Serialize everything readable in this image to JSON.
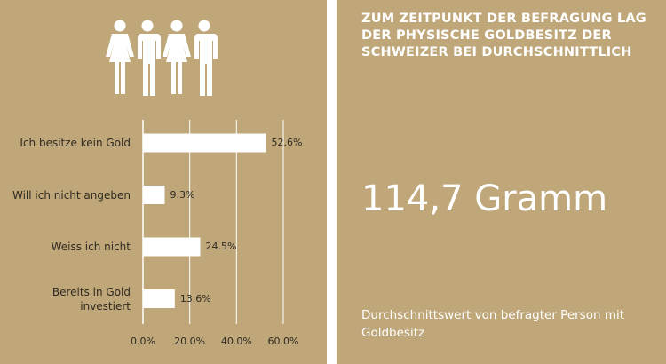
{
  "chart_data": {
    "type": "bar",
    "orientation": "horizontal",
    "categories": [
      "Ich besitze kein Gold",
      "Will ich nicht angeben",
      "Weiss ich nicht",
      "Bereits in Gold investiert"
    ],
    "category_lines": [
      [
        "Ich besitze kein Gold"
      ],
      [
        "Will ich nicht angeben"
      ],
      [
        "Weiss ich nicht"
      ],
      [
        "Bereits in Gold",
        "investiert"
      ]
    ],
    "values": [
      52.6,
      9.3,
      24.5,
      13.6
    ],
    "value_labels": [
      "52.6%",
      "9.3%",
      "24.5%",
      "13.6%"
    ],
    "xlim": [
      0,
      60
    ],
    "ticks": [
      0,
      20,
      40,
      60
    ],
    "tick_labels": [
      "0.0%",
      "20.0%",
      "40.0%",
      "60.0%"
    ],
    "grid": true,
    "bar_color": "#ffffff",
    "grid_color": "#ffffff"
  },
  "icon": "group-of-people-icon",
  "headline": "ZUM ZEITPUNKT DER BEFRAGUNG LAG DER PHYSISCHE GOLDBESITZ DER SCHWEIZER BEI DURCHSCHNITTLICH",
  "big_value": "114,7 Gramm",
  "footnote": "Durchschnittswert von befragter Person mit Goldbesitz",
  "colors": {
    "panel": "#bfa77a",
    "divider": "#ffffff",
    "text_light": "#ffffff",
    "text_dark": "#2f2a22"
  }
}
